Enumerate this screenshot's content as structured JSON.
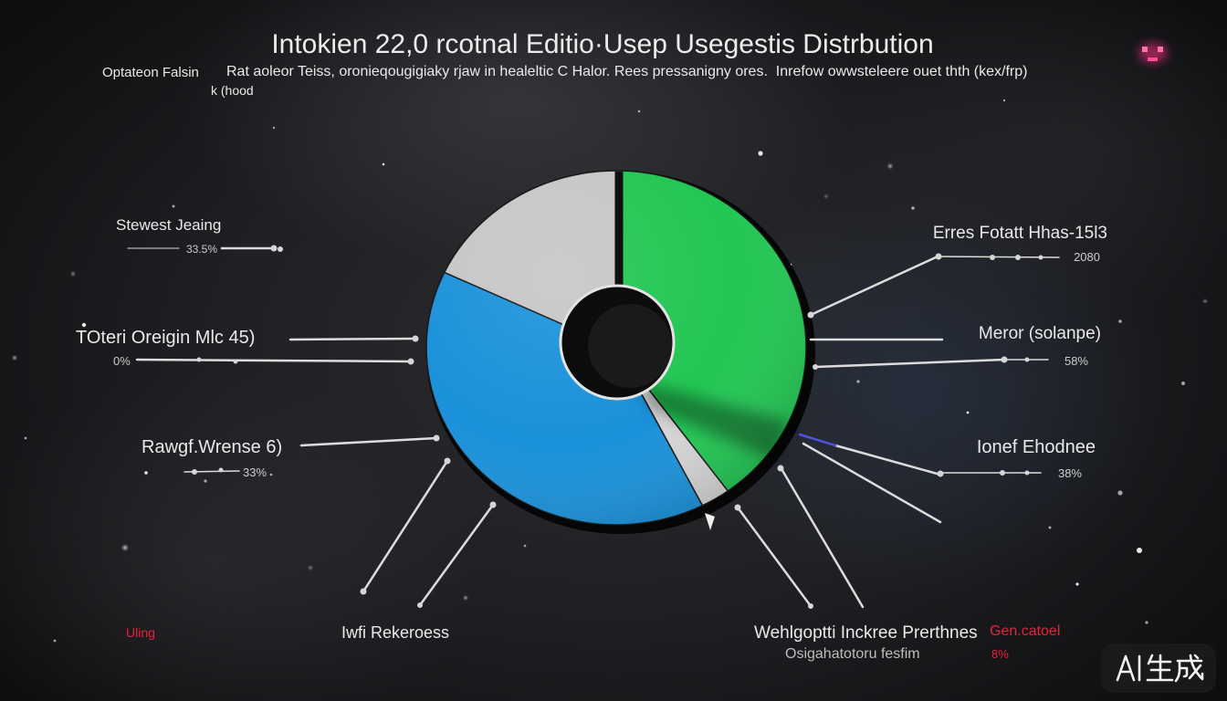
{
  "chart_data": {
    "type": "pie",
    "donut": true,
    "title": "Intokien 22,0 rcotnal Editio·Usep Usegestis Distrbution",
    "subtitle": [
      "Optateon Falsin",
      "Rat aoleor Teiss, oronieqougigiaky rjaw in healeltic C Halor. Rees pressanigny ores.  Inrefow owwsteleere ouet thth (kex/frp)",
      "k (hood"
    ],
    "values": [
      40,
      2.5,
      39.5,
      18
    ],
    "colors": [
      "#22c653",
      "#d4d4d4",
      "#1a91da",
      "#c6c6c6"
    ],
    "legend": false,
    "grid": false,
    "annotations": [
      {
        "label": "Stewest Jeaing",
        "value": "33.5%"
      },
      {
        "label": "TOteri Oreigin Mlc 45)",
        "value": "0%"
      },
      {
        "label": "Rawgf.Wrense 6)",
        "value": "33%"
      },
      {
        "label": "Erres Fotatt Hhas-15l3",
        "value": "2080"
      },
      {
        "label": "Meror (solanpe)",
        "value": "58%"
      },
      {
        "label": "Ionef Ehodnee",
        "value": "38%"
      },
      {
        "label": "Uling",
        "color": "#e8213c"
      },
      {
        "label": "Iwfi Rekeroess"
      },
      {
        "label": "Wehlgoptti Inckree Prerthnes",
        "sublabel": "Osigahatotoru fesfim"
      },
      {
        "label": "Gen.catoel",
        "value": "8%",
        "color": "#e8213c"
      }
    ]
  },
  "colors": {
    "background": "#1f2023",
    "text": "#e9e9e9",
    "leader_lines": "#dcdcdc"
  },
  "watermark": "AI生成"
}
